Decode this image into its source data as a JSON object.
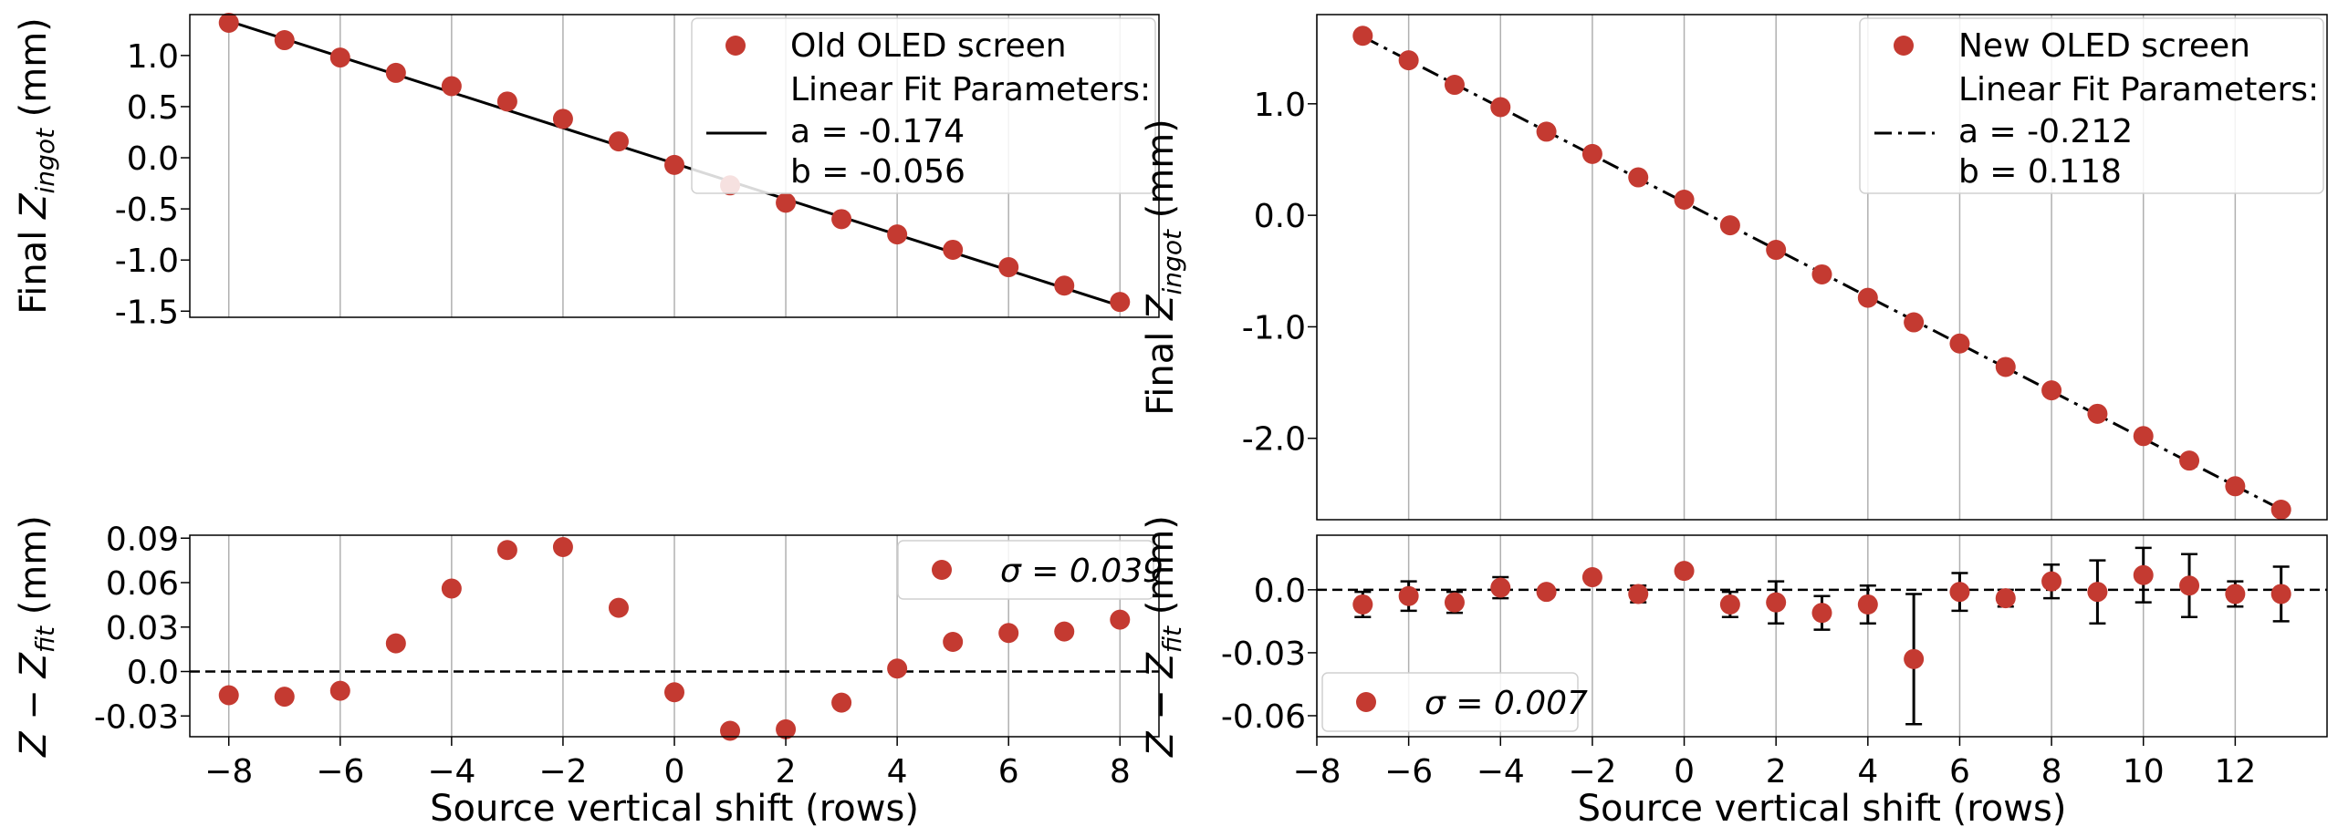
{
  "chart_data": [
    {
      "id": "left",
      "type": "scatter",
      "top": {
        "ylabel_pre": "Final ",
        "ylabel_var": "Z",
        "ylabel_sub": "ingot",
        "ylabel_unit": " (mm)",
        "ylim": [
          -1.56,
          1.4
        ],
        "yticks": [
          -1.5,
          -1.0,
          -0.5,
          0.0,
          0.5,
          1.0
        ],
        "ytick_labels": [
          "-1.5",
          "-1.0",
          "-0.5",
          "0.0",
          "0.5",
          "1.0"
        ],
        "points": {
          "x": [
            -8,
            -7,
            -6,
            -5,
            -4,
            -3,
            -2,
            -1,
            0,
            1,
            2,
            3,
            4,
            5,
            6,
            7,
            8
          ],
          "y": [
            1.32,
            1.15,
            0.98,
            0.83,
            0.7,
            0.55,
            0.38,
            0.16,
            -0.07,
            -0.27,
            -0.44,
            -0.6,
            -0.75,
            -0.9,
            -1.07,
            -1.25,
            -1.41
          ]
        },
        "fit": {
          "a": -0.174,
          "b": -0.056,
          "style": "solid"
        },
        "legend": {
          "series_label": "Old OLED screen",
          "fit_title": "Linear Fit Parameters:",
          "fit_a": "a = -0.174",
          "fit_b": "b = -0.056",
          "position": "top-right"
        }
      },
      "bottom": {
        "ylabel_var": "Z",
        "ylabel_minus": " − ",
        "ylabel_var2": "Z",
        "ylabel_sub": "fit",
        "ylabel_unit": " (mm)",
        "ylim": [
          -0.044,
          0.092
        ],
        "yticks": [
          -0.03,
          0.0,
          0.03,
          0.06,
          0.09
        ],
        "ytick_labels": [
          "-0.03",
          "0.0",
          "0.03",
          "0.06",
          "0.09"
        ],
        "points": {
          "x": [
            -8,
            -7,
            -6,
            -5,
            -4,
            -3,
            -2,
            -1,
            0,
            1,
            2,
            3,
            4,
            5,
            6,
            7,
            8
          ],
          "y": [
            -0.016,
            -0.017,
            -0.013,
            0.019,
            0.056,
            0.082,
            0.084,
            0.043,
            -0.014,
            -0.04,
            -0.039,
            -0.021,
            0.002,
            0.02,
            0.026,
            0.027,
            0.035
          ]
        },
        "legend": {
          "sigma_text": "σ = 0.039",
          "position": "top-right"
        }
      },
      "xlabel": "Source vertical shift (rows)",
      "xlim": [
        -8.7,
        8.7
      ],
      "xticks": [
        -8,
        -6,
        -4,
        -2,
        0,
        2,
        4,
        6,
        8
      ],
      "xtick_labels": [
        "−8",
        "−6",
        "−4",
        "−2",
        "0",
        "2",
        "4",
        "6",
        "8"
      ]
    },
    {
      "id": "right",
      "type": "scatter",
      "top": {
        "ylabel_pre": "Final ",
        "ylabel_var": "Z",
        "ylabel_sub": "ingot",
        "ylabel_unit": " (mm)",
        "ylim": [
          -2.73,
          1.8
        ],
        "yticks": [
          -2.0,
          -1.0,
          0.0,
          1.0
        ],
        "ytick_labels": [
          "-2.0",
          "-1.0",
          "0.0",
          "1.0"
        ],
        "points": {
          "x": [
            -7,
            -6,
            -5,
            -4,
            -3,
            -2,
            -1,
            0,
            1,
            2,
            3,
            4,
            5,
            6,
            7,
            8,
            9,
            10,
            11,
            12,
            13
          ],
          "y": [
            1.61,
            1.39,
            1.17,
            0.97,
            0.75,
            0.55,
            0.34,
            0.14,
            -0.09,
            -0.31,
            -0.53,
            -0.74,
            -0.96,
            -1.15,
            -1.36,
            -1.57,
            -1.78,
            -1.98,
            -2.2,
            -2.43,
            -2.64
          ]
        },
        "fit": {
          "a": -0.212,
          "b": 0.118,
          "style": "dashdot"
        },
        "legend": {
          "series_label": "New OLED screen",
          "fit_title": "Linear Fit Parameters:",
          "fit_a": "a = -0.212",
          "fit_b": "b = 0.118",
          "position": "top-right"
        }
      },
      "bottom": {
        "ylabel_var": "Z",
        "ylabel_minus": " − ",
        "ylabel_var2": "Z",
        "ylabel_sub": "fit",
        "ylabel_unit": " (mm)",
        "ylim": [
          -0.07,
          0.026
        ],
        "yticks": [
          -0.06,
          -0.03,
          0.0
        ],
        "ytick_labels": [
          "-0.06",
          "-0.03",
          "0.0"
        ],
        "points": {
          "x": [
            -7,
            -6,
            -5,
            -4,
            -3,
            -2,
            -1,
            0,
            1,
            2,
            3,
            4,
            5,
            6,
            7,
            8,
            9,
            10,
            11,
            12,
            13
          ],
          "y": [
            -0.007,
            -0.003,
            -0.006,
            0.001,
            -0.001,
            0.006,
            -0.002,
            0.009,
            -0.007,
            -0.006,
            -0.011,
            -0.007,
            -0.033,
            -0.001,
            -0.004,
            0.004,
            -0.001,
            0.007,
            0.002,
            -0.002,
            -0.002
          ],
          "err": [
            0.006,
            0.007,
            0.005,
            0.005,
            0.0,
            0.0,
            0.004,
            0.0,
            0.006,
            0.01,
            0.008,
            0.009,
            0.031,
            0.009,
            0.004,
            0.008,
            0.015,
            0.013,
            0.015,
            0.006,
            0.013
          ]
        },
        "legend": {
          "sigma_text": "σ = 0.007",
          "position": "bottom-left"
        }
      },
      "xlabel": "Source vertical shift (rows)",
      "xlim": [
        -8.0,
        14.0
      ],
      "xticks": [
        -8,
        -6,
        -4,
        -2,
        0,
        2,
        4,
        6,
        8,
        10,
        12
      ],
      "xtick_labels": [
        "−8",
        "−6",
        "−4",
        "−2",
        "0",
        "2",
        "4",
        "6",
        "8",
        "10",
        "12"
      ]
    }
  ],
  "colors": {
    "marker": "#c43a31",
    "grid": "#b0b0b0",
    "line": "#000000"
  }
}
